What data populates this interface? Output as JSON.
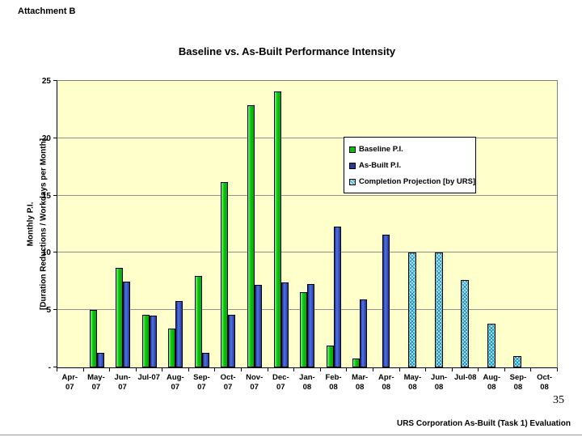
{
  "page": {
    "attachment_label": "Attachment B",
    "page_number": "35",
    "footer": "URS Corporation As-Built (Task 1) Evaluation"
  },
  "chart_data": {
    "type": "bar",
    "title": "Baseline vs. As-Built Performance Intensity",
    "ylabel_line1": "Monthly P.I.",
    "ylabel_line2": "[Duration Reductions / Workdays per Month]",
    "xlabel": "",
    "ylim": [
      0,
      25
    ],
    "ytick_step": 5,
    "ytick_labels": [
      "25",
      "20",
      "15",
      "10",
      "5",
      "-"
    ],
    "grid": true,
    "legend_position": "inside-upper-right",
    "plot_bg_color": "#FFFFCC",
    "gridline_color": "#8f8f8f",
    "categories": [
      "Apr-07",
      "May-07",
      "Jun-07",
      "Jul-07",
      "Aug-07",
      "Sep-07",
      "Oct-07",
      "Nov-07",
      "Dec-07",
      "Jan-08",
      "Feb-08",
      "Mar-08",
      "Apr-08",
      "May-08",
      "Jun-08",
      "Jul-08",
      "Aug-08",
      "Sep-08",
      "Oct-08"
    ],
    "category_label_lines": [
      [
        "Apr-",
        "07"
      ],
      [
        "May-",
        "07"
      ],
      [
        "Jun-",
        "07"
      ],
      [
        "Jul-07"
      ],
      [
        "Aug-",
        "07"
      ],
      [
        "Sep-",
        "07"
      ],
      [
        "Oct-",
        "07"
      ],
      [
        "Nov-",
        "07"
      ],
      [
        "Dec-",
        "07"
      ],
      [
        "Jan-",
        "08"
      ],
      [
        "Feb-",
        "08"
      ],
      [
        "Mar-",
        "08"
      ],
      [
        "Apr-",
        "08"
      ],
      [
        "May-",
        "08"
      ],
      [
        "Jun-",
        "08"
      ],
      [
        "Jul-08"
      ],
      [
        "Aug-",
        "08"
      ],
      [
        "Sep-",
        "08"
      ],
      [
        "Oct-",
        "08"
      ]
    ],
    "series": [
      {
        "name": "Baseline P.I.",
        "style": "green",
        "color": "#00C000",
        "values": [
          0,
          5.0,
          8.7,
          4.6,
          3.4,
          8.0,
          16.2,
          22.9,
          24.1,
          6.6,
          1.9,
          0.8,
          0,
          0,
          0,
          0,
          0,
          0,
          0
        ]
      },
      {
        "name": "As-Built P.I.",
        "style": "blue",
        "color": "#2B3A9E",
        "values": [
          0,
          1.3,
          7.5,
          4.5,
          5.8,
          1.3,
          4.6,
          7.2,
          7.4,
          7.3,
          12.3,
          5.9,
          11.6,
          0,
          0,
          0,
          0,
          0,
          0
        ]
      },
      {
        "name": "Completion Projection [by URS]",
        "style": "hatch",
        "color": "#AEEFFF",
        "hatch_color": "#238CB4",
        "values": [
          0,
          0,
          0,
          0,
          0,
          0,
          0,
          0,
          0,
          0,
          0,
          0,
          0,
          10.0,
          10.0,
          7.6,
          3.8,
          1.0,
          0
        ]
      }
    ]
  }
}
